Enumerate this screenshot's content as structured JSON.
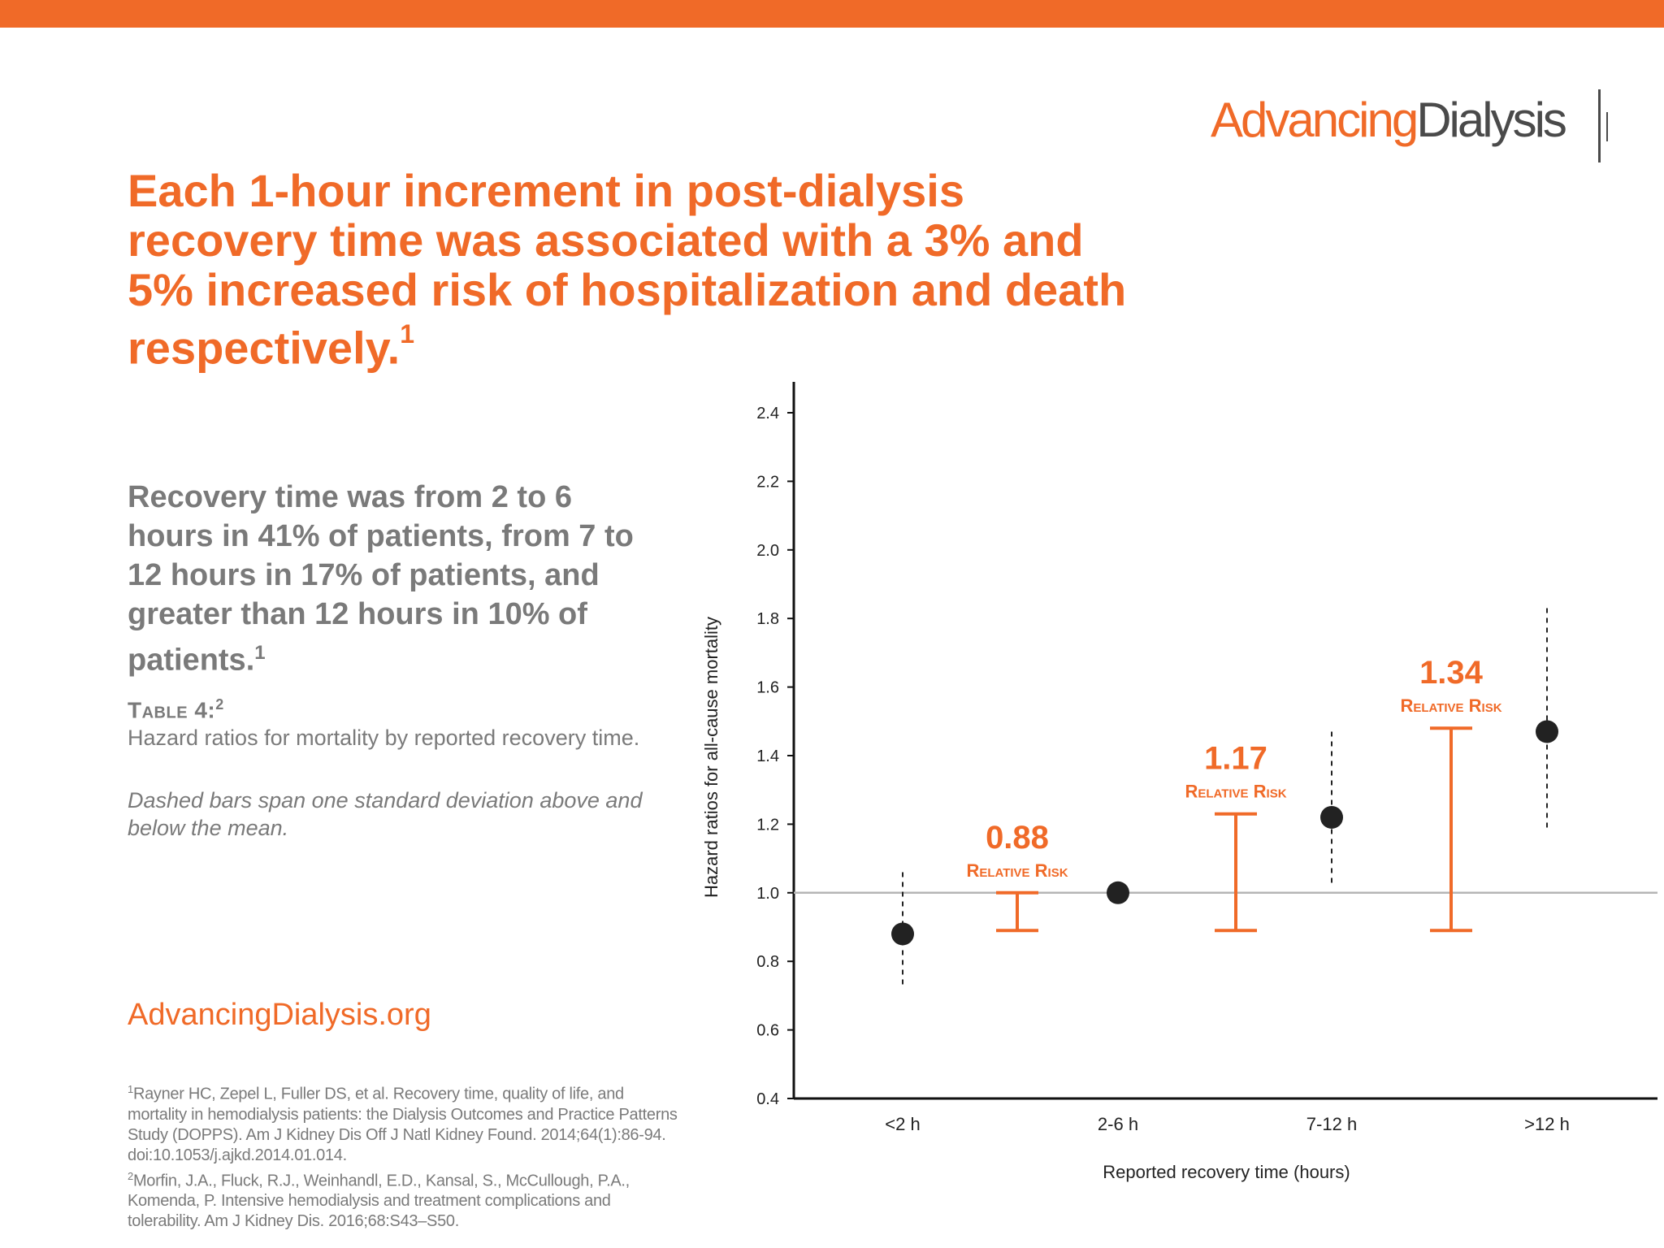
{
  "colors": {
    "accent": "#f06a28",
    "text_gray": "#7a7a7a",
    "logo_gray": "#4a4a4a",
    "point": "#222222",
    "refline": "#b5b5b5"
  },
  "logo": {
    "part1": "Advancing",
    "part2": "Dialysis"
  },
  "headline": {
    "text": "Each 1-hour increment in post-dialysis recovery time was associated with a 3% and 5% increased risk of hospitalization and death respectively.",
    "sup": "1"
  },
  "summary": {
    "text": "Recovery time was from 2 to 6 hours in 41% of patients, from 7 to 12 hours in 17% of patients, and greater than 12 hours in 10% of patients.",
    "sup": "1"
  },
  "table": {
    "label": "Table 4:",
    "label_sup": "2",
    "description": "Hazard ratios for mortality by reported recovery time.",
    "note": "Dashed bars span one standard deviation above and below the mean."
  },
  "site_link": "AdvancingDialysis.org",
  "references": [
    {
      "sup": "1",
      "text": "Rayner HC, Zepel L, Fuller DS, et al. Recovery time, quality of life, and mortality in hemodialysis patients: the Dialysis Outcomes and Practice Patterns Study (DOPPS). Am J Kidney Dis Off J Natl Kidney Found. 2014;64(1):86-94. doi:10.1053/j.ajkd.2014.01.014."
    },
    {
      "sup": "2",
      "text": "Morfin, J.A., Fluck, R.J., Weinhandl, E.D., Kansal, S., McCullough, P.A., Komenda, P. Intensive hemodialysis and treatment complications and tolerability. Am J Kidney Dis. 2016;68:S43–S50."
    }
  ],
  "chart_data": {
    "type": "scatter",
    "xlabel": "Reported recovery time (hours)",
    "ylabel": "Hazard ratios for all-cause mortality",
    "categories": [
      "<2 h",
      "2-6 h",
      "7-12 h",
      ">12 h"
    ],
    "ylim": [
      0.4,
      2.5
    ],
    "yticks": [
      0.4,
      0.6,
      0.8,
      1.0,
      1.2,
      1.4,
      1.6,
      1.8,
      2.0,
      2.2,
      2.4
    ],
    "reference_line": 1.0,
    "grid": false,
    "points": [
      {
        "category": "<2 h",
        "value": 0.88,
        "sd_low": 0.72,
        "sd_high": 1.06
      },
      {
        "category": "2-6 h",
        "value": 1.0
      },
      {
        "category": "7-12 h",
        "value": 1.22,
        "sd_low": 1.02,
        "sd_high": 1.47
      },
      {
        "category": ">12 h",
        "value": 1.47,
        "sd_low": 1.19,
        "sd_high": 1.83
      }
    ],
    "relative_risk": [
      {
        "value": "0.88",
        "label": "Relative Risk",
        "low": 0.89,
        "high": 1.0
      },
      {
        "value": "1.17",
        "label": "Relative Risk",
        "low": 0.89,
        "high": 1.23
      },
      {
        "value": "1.34",
        "label": "Relative Risk",
        "low": 0.89,
        "high": 1.48
      }
    ]
  }
}
